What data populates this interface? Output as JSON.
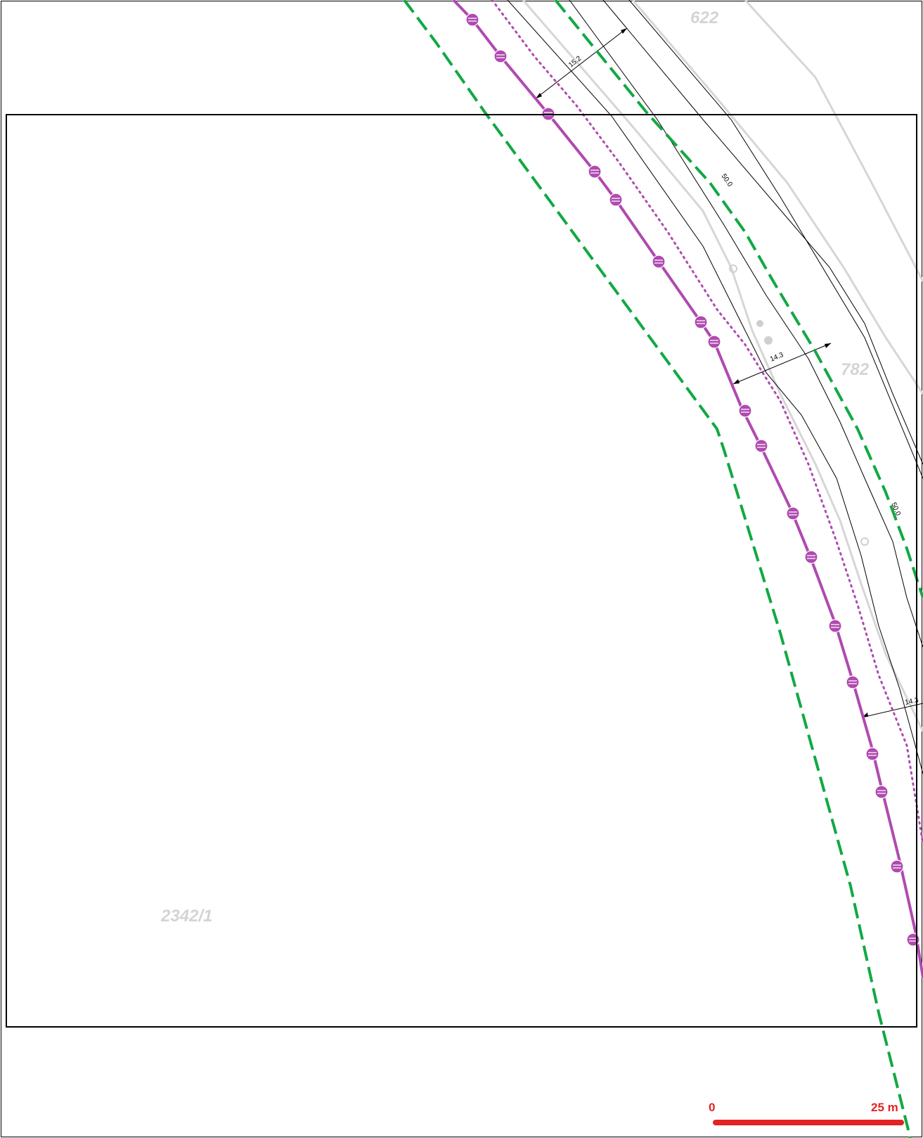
{
  "parcels": [
    {
      "id": "parcel-622",
      "label": "622"
    },
    {
      "id": "parcel-782",
      "label": "782"
    },
    {
      "id": "parcel-2342-1",
      "label": "2342/1"
    }
  ],
  "dimensions": [
    {
      "id": "dim-15-2",
      "label": "15.2"
    },
    {
      "id": "dim-50-0-a",
      "label": "50.0"
    },
    {
      "id": "dim-14-3-a",
      "label": "14.3"
    },
    {
      "id": "dim-50-0-b",
      "label": "50.0"
    },
    {
      "id": "dim-14-3-b",
      "label": "14.3"
    }
  ],
  "scale_bar": {
    "start_label": "0",
    "end_label": "25 m",
    "color": "#e32222"
  },
  "colors": {
    "frame": "#000000",
    "thin_line": "#000000",
    "parcel_line": "#cfcfcf",
    "pipeline": "#b04ab0",
    "dashed_boundary": "#12a844",
    "parcel_text": "#d4d4d4"
  }
}
